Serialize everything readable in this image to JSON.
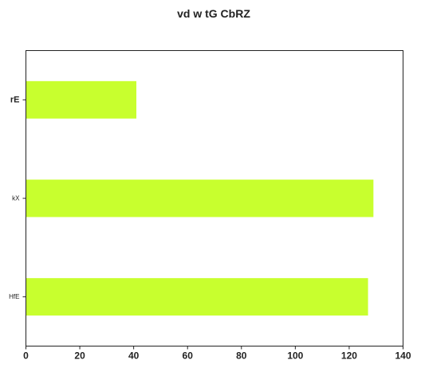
{
  "chart_data": {
    "type": "bar",
    "orientation": "horizontal",
    "title": "vd w tG CbRZ",
    "xlabel": "",
    "ylabel": "",
    "categories": [
      "rE",
      "kX",
      "HfE"
    ],
    "values": [
      41,
      129,
      127
    ],
    "xlim": [
      0,
      140
    ],
    "xticks": [
      "0",
      "20",
      "40",
      "60",
      "80",
      "100",
      "120",
      "140"
    ],
    "bar_color": "#c8ff2e",
    "grid": false,
    "legend": "none"
  }
}
